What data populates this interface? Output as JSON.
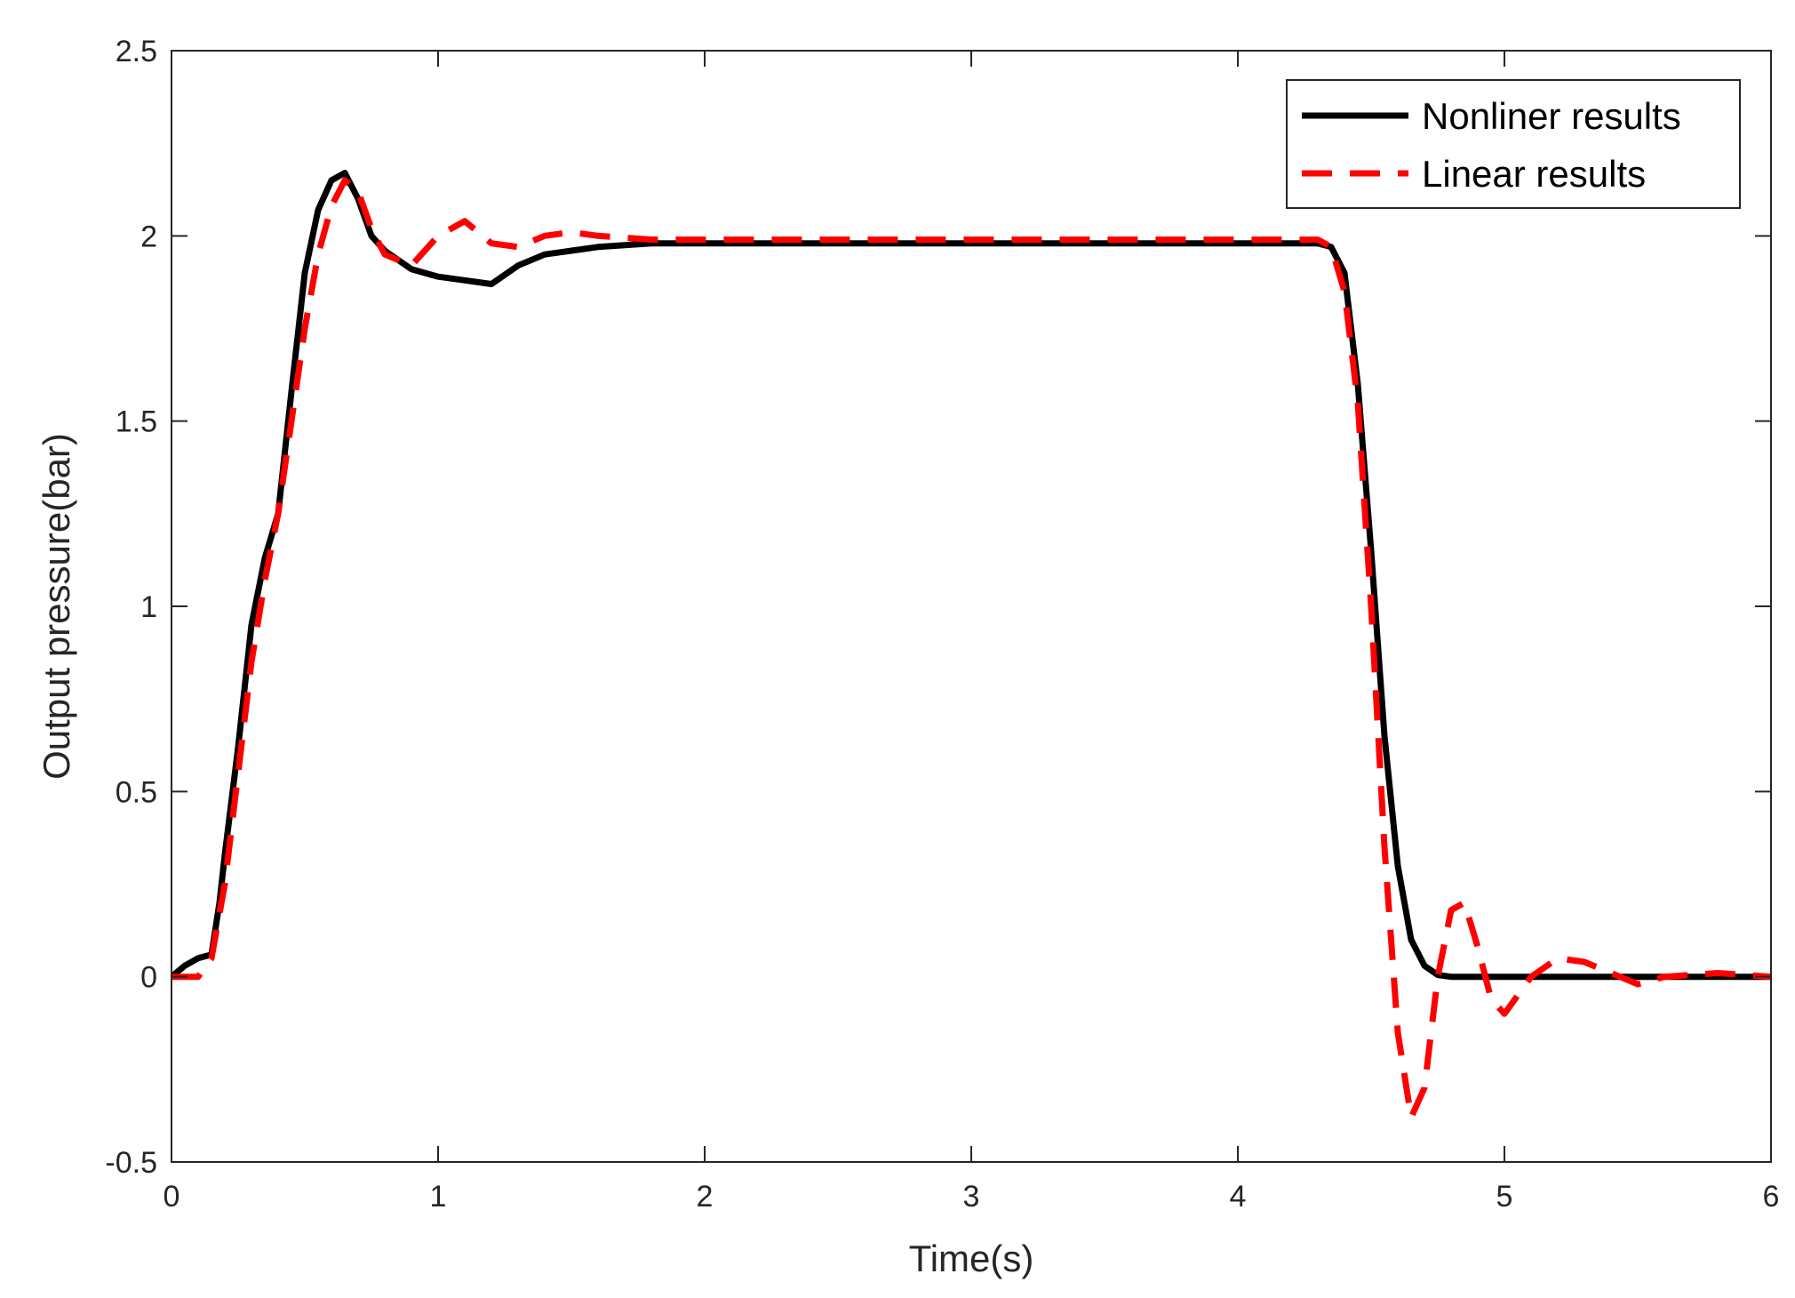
{
  "chart_data": {
    "type": "line",
    "title": "",
    "xlabel": "Time(s)",
    "ylabel": "Output pressure(bar)",
    "xlim": [
      0,
      6
    ],
    "ylim": [
      -0.5,
      2.5
    ],
    "xticks": [
      0,
      1,
      2,
      3,
      4,
      5,
      6
    ],
    "yticks": [
      -0.5,
      0,
      0.5,
      1,
      1.5,
      2,
      2.5
    ],
    "xtick_labels": [
      "0",
      "1",
      "2",
      "3",
      "4",
      "5",
      "6"
    ],
    "ytick_labels": [
      "-0.5",
      "0",
      "0.5",
      "1",
      "1.5",
      "2",
      "2.5"
    ],
    "grid": false,
    "legend_position": "top-right",
    "series": [
      {
        "name": "Nonliner results",
        "color": "#000000",
        "style": "solid",
        "x": [
          0,
          0.05,
          0.1,
          0.15,
          0.18,
          0.2,
          0.25,
          0.3,
          0.35,
          0.4,
          0.45,
          0.5,
          0.55,
          0.6,
          0.65,
          0.7,
          0.75,
          0.8,
          0.9,
          1.0,
          1.1,
          1.2,
          1.3,
          1.4,
          1.5,
          1.6,
          1.8,
          2.0,
          3.0,
          4.0,
          4.3,
          4.35,
          4.4,
          4.45,
          4.5,
          4.55,
          4.6,
          4.65,
          4.7,
          4.75,
          4.8,
          5.0,
          5.5,
          6.0
        ],
        "y": [
          0,
          0.03,
          0.05,
          0.06,
          0.2,
          0.33,
          0.62,
          0.95,
          1.13,
          1.25,
          1.58,
          1.9,
          2.07,
          2.15,
          2.17,
          2.1,
          2.0,
          1.96,
          1.91,
          1.89,
          1.88,
          1.87,
          1.92,
          1.95,
          1.96,
          1.97,
          1.98,
          1.98,
          1.98,
          1.98,
          1.98,
          1.97,
          1.9,
          1.6,
          1.15,
          0.65,
          0.3,
          0.1,
          0.03,
          0.005,
          0,
          0,
          0,
          0
        ]
      },
      {
        "name": "Linear results",
        "color": "#ff0000",
        "style": "dashed",
        "x": [
          0,
          0.1,
          0.15,
          0.2,
          0.25,
          0.3,
          0.35,
          0.4,
          0.45,
          0.5,
          0.55,
          0.6,
          0.65,
          0.7,
          0.75,
          0.8,
          0.9,
          1.0,
          1.1,
          1.2,
          1.3,
          1.4,
          1.5,
          1.6,
          1.8,
          2.0,
          3.0,
          4.0,
          4.3,
          4.35,
          4.4,
          4.45,
          4.5,
          4.55,
          4.6,
          4.65,
          4.7,
          4.75,
          4.8,
          4.85,
          4.9,
          4.95,
          5.0,
          5.1,
          5.2,
          5.3,
          5.4,
          5.5,
          5.6,
          5.8,
          6.0
        ],
        "y": [
          0,
          0,
          0.05,
          0.25,
          0.55,
          0.85,
          1.07,
          1.25,
          1.5,
          1.75,
          1.95,
          2.08,
          2.15,
          2.12,
          2.02,
          1.95,
          1.92,
          2.0,
          2.04,
          1.98,
          1.97,
          2.0,
          2.01,
          2.0,
          1.99,
          1.99,
          1.99,
          1.99,
          1.99,
          1.97,
          1.85,
          1.55,
          1.0,
          0.35,
          -0.15,
          -0.38,
          -0.3,
          0.0,
          0.18,
          0.2,
          0.08,
          -0.06,
          -0.1,
          0.0,
          0.05,
          0.04,
          0.01,
          -0.02,
          0.0,
          0.01,
          0.0
        ]
      }
    ]
  }
}
